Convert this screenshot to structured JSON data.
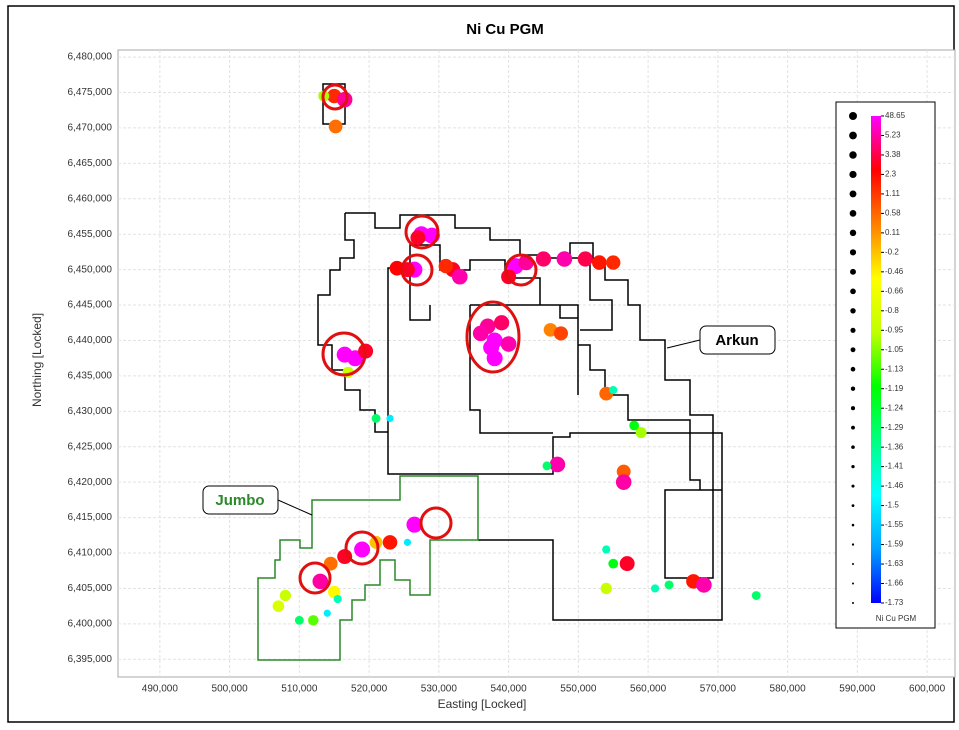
{
  "chart_data": {
    "type": "scatter",
    "title": "Ni Cu PGM",
    "xlabel": "Easting [Locked]",
    "ylabel": "Northing [Locked]",
    "annotations": [
      "Arkun",
      "Jumbo"
    ],
    "xlim": [
      484000,
      604000
    ],
    "ylim": [
      6392500,
      6481000
    ],
    "xticks": [
      {
        "value": 490000,
        "label": "490,000"
      },
      {
        "value": 500000,
        "label": "500,000"
      },
      {
        "value": 510000,
        "label": "510,000"
      },
      {
        "value": 520000,
        "label": "520,000"
      },
      {
        "value": 530000,
        "label": "530,000"
      },
      {
        "value": 540000,
        "label": "540,000"
      },
      {
        "value": 550000,
        "label": "550,000"
      },
      {
        "value": 560000,
        "label": "560,000"
      },
      {
        "value": 570000,
        "label": "570,000"
      },
      {
        "value": 580000,
        "label": "580,000"
      },
      {
        "value": 590000,
        "label": "590,000"
      },
      {
        "value": 600000,
        "label": "600,000"
      }
    ],
    "yticks": [
      {
        "value": 6395000,
        "label": "6,395,000"
      },
      {
        "value": 6400000,
        "label": "6,400,000"
      },
      {
        "value": 6405000,
        "label": "6,405,000"
      },
      {
        "value": 6410000,
        "label": "6,410,000"
      },
      {
        "value": 6415000,
        "label": "6,415,000"
      },
      {
        "value": 6420000,
        "label": "6,420,000"
      },
      {
        "value": 6425000,
        "label": "6,425,000"
      },
      {
        "value": 6430000,
        "label": "6,430,000"
      },
      {
        "value": 6435000,
        "label": "6,435,000"
      },
      {
        "value": 6440000,
        "label": "6,440,000"
      },
      {
        "value": 6445000,
        "label": "6,445,000"
      },
      {
        "value": 6450000,
        "label": "6,450,000"
      },
      {
        "value": 6455000,
        "label": "6,455,000"
      },
      {
        "value": 6460000,
        "label": "6,460,000"
      },
      {
        "value": 6465000,
        "label": "6,465,000"
      },
      {
        "value": 6470000,
        "label": "6,470,000"
      },
      {
        "value": 6475000,
        "label": "6,475,000"
      },
      {
        "value": 6480000,
        "label": "6,480,000"
      }
    ],
    "grid": true,
    "legend": {
      "title": "Ni Cu PGM",
      "position": "right",
      "ticks": [
        48.65,
        5.23,
        3.38,
        2.3,
        1.11,
        0.58,
        0.11,
        -0.2,
        -0.46,
        -0.66,
        -0.8,
        -0.95,
        -1.05,
        -1.13,
        -1.19,
        -1.24,
        -1.29,
        -1.36,
        -1.41,
        -1.46,
        -1.5,
        -1.55,
        -1.59,
        -1.63,
        -1.66,
        -1.73
      ],
      "colorscale": [
        "#0000ff",
        "#00a0ff",
        "#00ffff",
        "#00ff80",
        "#00ff00",
        "#c0ff00",
        "#ffff00",
        "#ff8000",
        "#ff0000",
        "#ff00ff"
      ]
    },
    "x": [
      515000,
      516500,
      513500,
      515200,
      527500,
      529000,
      527000,
      526500,
      525500,
      524000,
      532000,
      533000,
      531000,
      541000,
      542500,
      540000,
      545000,
      548000,
      551000,
      553000,
      555000,
      537000,
      539000,
      536000,
      538000,
      540000,
      537500,
      538000,
      546000,
      547500,
      516500,
      518000,
      519500,
      517000,
      521000,
      523000,
      554000,
      555000,
      558000,
      559000,
      547000,
      545500,
      556500,
      556500,
      526500,
      525500,
      523000,
      521000,
      519000,
      516500,
      514500,
      513000,
      515000,
      515500,
      508000,
      507000,
      510000,
      512000,
      514000,
      554000,
      555000,
      557000,
      554000,
      561000,
      563000,
      566500,
      568000,
      575500
    ],
    "y": [
      6474500,
      6474000,
      6474500,
      6470200,
      6455000,
      6454800,
      6454500,
      6450000,
      6450000,
      6450200,
      6450000,
      6449000,
      6450500,
      6450500,
      6451000,
      6449000,
      6451500,
      6451500,
      6451500,
      6451000,
      6451000,
      6442000,
      6442500,
      6441000,
      6440000,
      6439500,
      6439000,
      6437500,
      6441500,
      6441000,
      6438000,
      6437500,
      6438500,
      6435500,
      6429000,
      6429000,
      6432500,
      6433000,
      6428000,
      6427000,
      6422500,
      6422300,
      6421500,
      6420000,
      6414000,
      6411500,
      6411500,
      6411500,
      6410500,
      6409500,
      6408500,
      6406000,
      6404500,
      6403500,
      6404000,
      6402500,
      6400500,
      6400500,
      6401500,
      6410500,
      6408500,
      6408500,
      6405000,
      6405000,
      6405500,
      6406000,
      6405500,
      6404000
    ],
    "values": [
      1.5,
      5,
      -1.0,
      0.5,
      48,
      48,
      3,
      48,
      3,
      2.5,
      3,
      10,
      1.5,
      48,
      5,
      3,
      4,
      10,
      3.5,
      2,
      1.5,
      5,
      4,
      8,
      48,
      10,
      48,
      48,
      0.3,
      1,
      48,
      48,
      3,
      -0.9,
      -1.3,
      -1.5,
      0.6,
      -1.4,
      -1.2,
      -1.0,
      10,
      -1.3,
      0.7,
      6,
      48,
      -1.5,
      2,
      -0.2,
      48,
      3,
      0.5,
      6,
      -0.5,
      -1.4,
      -0.9,
      -0.8,
      -1.3,
      -1.1,
      -1.5,
      -1.4,
      -1.2,
      3,
      -0.9,
      -1.4,
      -1.3,
      2,
      10,
      -1.3
    ]
  }
}
